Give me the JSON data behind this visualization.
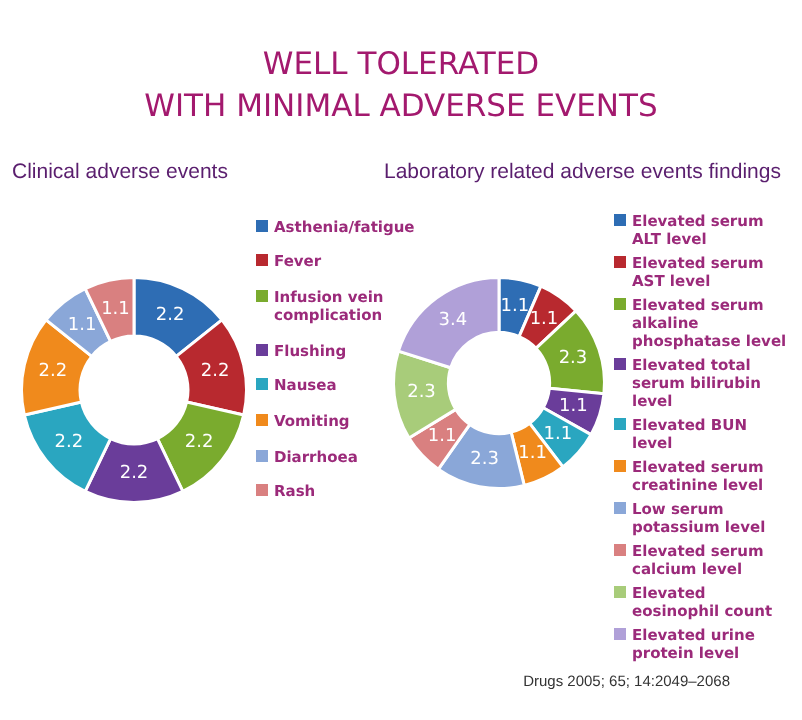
{
  "chart_data": [
    {
      "type": "donut",
      "title": "WELL TOLERATED\nWITH MINIMAL ADVERSE EVENTS",
      "subtitle": "Clinical adverse events",
      "categories": [
        "Asthenia/fatigue",
        "Fever",
        "Infusion vein complication",
        "Flushing",
        "Nausea",
        "Vomiting",
        "Diarrhoea",
        "Rash"
      ],
      "values": [
        2.2,
        2.2,
        2.2,
        2.2,
        2.2,
        2.2,
        1.1,
        1.1
      ],
      "colors": [
        "#2e6db4",
        "#b8292f",
        "#7aab2e",
        "#6a3d9a",
        "#2aa6c0",
        "#f08a1c",
        "#8aa7d8",
        "#d98080"
      ],
      "data_labels": true,
      "legend": "right"
    },
    {
      "type": "donut",
      "title": "Laboratory related adverse events findings",
      "categories": [
        "Elevated serum ALT level",
        "Elevated serum AST level",
        "Elevated serum alkaline phosphatase level",
        "Elevated total serum bilirubin level",
        "Elevated BUN level",
        "Elevated serum creatinine level",
        "Low serum potassium level",
        "Elevated serum calcium level",
        "Elevated eosinophil count",
        "Elevated urine protein level"
      ],
      "values": [
        1.1,
        1.1,
        2.3,
        1.1,
        1.1,
        1.1,
        2.3,
        1.1,
        2.3,
        3.4
      ],
      "colors": [
        "#2e6db4",
        "#b8292f",
        "#7aab2e",
        "#6a3d9a",
        "#2aa6c0",
        "#f08a1c",
        "#8aa7d8",
        "#d98080",
        "#a8cc7a",
        "#b0a0d8"
      ],
      "data_labels": true,
      "legend": "right",
      "annotations": [
        "Drugs 2005; 65; 14:2049–2068"
      ]
    }
  ]
}
